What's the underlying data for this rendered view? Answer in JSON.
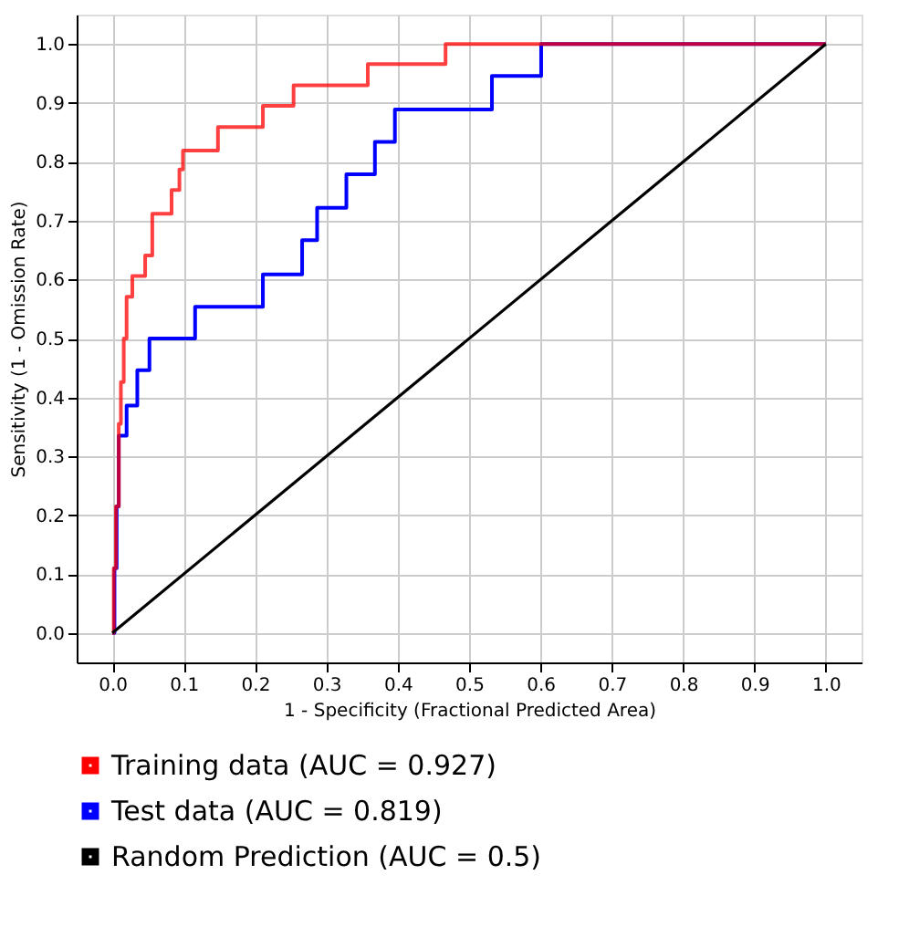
{
  "chart_data": {
    "type": "step",
    "xlabel": "1 - Specificity  (Fractional Predicted Area)",
    "ylabel": "Sensitivity (1 - Omission Rate)",
    "xlim": [
      -0.05,
      1.05
    ],
    "ylim": [
      -0.05,
      1.05
    ],
    "xticks": [
      {
        "value": 0,
        "label": "0.0"
      },
      0.1,
      0.2,
      0.3,
      0.4,
      0.5,
      0.6,
      0.7,
      0.8,
      0.9,
      {
        "value": 1,
        "label": "1.0"
      }
    ],
    "yticks": [
      {
        "value": 0,
        "label": "0.0"
      },
      0.1,
      0.2,
      0.3,
      0.4,
      0.5,
      0.6,
      0.7,
      0.8,
      0.9,
      {
        "value": 1,
        "label": "1.0"
      }
    ],
    "grid": true,
    "legend": "bottom",
    "marker": "none",
    "line_style": "solid",
    "series": [
      {
        "name": "Test data (AUC = 0.819)",
        "color": "#0000ff",
        "x": [
          0,
          0.003,
          0.006,
          0.009,
          0.02,
          0.035,
          0.052,
          0.116,
          0.211,
          0.266,
          0.287,
          0.328,
          0.368,
          0.396,
          0.532,
          0.601,
          1.0
        ],
        "values": [
          0,
          0.11,
          0.215,
          0.335,
          0.386,
          0.446,
          0.5,
          0.554,
          0.609,
          0.667,
          0.722,
          0.779,
          0.834,
          0.889,
          0.946,
          1.0,
          1.0
        ]
      },
      {
        "name": "Training data (AUC = 0.927)",
        "color": "#ff0000",
        "x": [
          0,
          0.002,
          0.005,
          0.009,
          0.012,
          0.016,
          0.02,
          0.028,
          0.046,
          0.056,
          0.083,
          0.094,
          0.099,
          0.148,
          0.211,
          0.254,
          0.358,
          0.467,
          1.0
        ],
        "values": [
          0,
          0.11,
          0.215,
          0.355,
          0.426,
          0.5,
          0.571,
          0.606,
          0.641,
          0.712,
          0.752,
          0.787,
          0.819,
          0.859,
          0.895,
          0.93,
          0.966,
          1.0,
          1.0
        ]
      },
      {
        "name": "Random Prediction (AUC = 0.5)",
        "color": "#000000",
        "type": "line",
        "x": [
          0,
          1
        ],
        "values": [
          0,
          1
        ]
      }
    ]
  }
}
